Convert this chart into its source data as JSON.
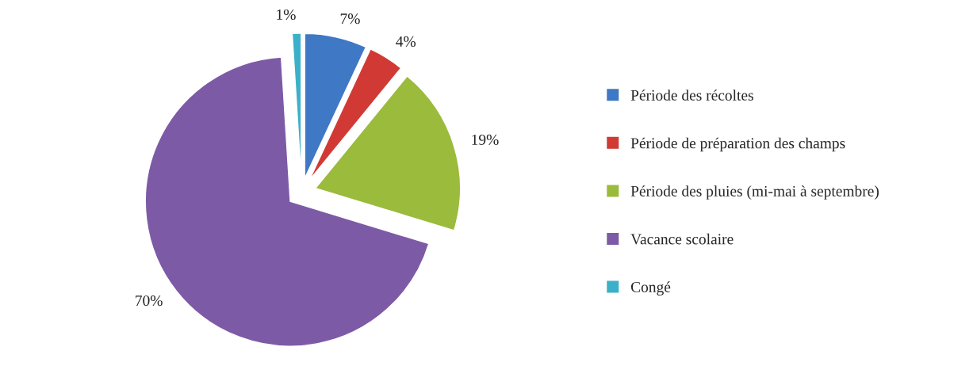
{
  "chart_data": {
    "type": "pie",
    "categories": [
      "Période des récoltes",
      "Période de préparation des champs",
      "Période des pluies (mi-mai à septembre)",
      "Vacance scolaire",
      "Congé"
    ],
    "values": [
      7,
      4,
      19,
      70,
      1
    ],
    "value_labels": [
      "7%",
      "4%",
      "19%",
      "70%",
      "1%"
    ],
    "colors": [
      "#3f78c4",
      "#d13a34",
      "#9bbb3c",
      "#7d5aa6",
      "#3bb0c9"
    ],
    "legend": "right"
  }
}
